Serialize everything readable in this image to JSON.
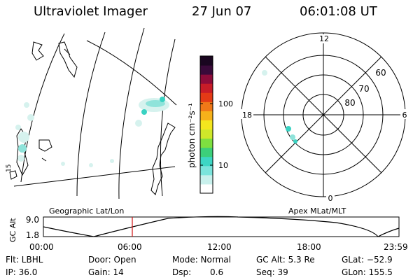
{
  "header": {
    "instrument": "Ultraviolet Imager",
    "date": "27 Jun 07",
    "time": "06:01:08 UT"
  },
  "colorbar": {
    "unit_label": "photon cm⁻²s⁻¹",
    "ticks": [
      "100",
      "10"
    ],
    "colors": [
      "#ffffff",
      "#c8f0ec",
      "#7be4dc",
      "#3dd6c4",
      "#3ccf7a",
      "#7ee040",
      "#cfe82a",
      "#f4e61e",
      "#f6b21a",
      "#f07818",
      "#e43a16",
      "#c81c28",
      "#8e0c3a",
      "#3a0a3a",
      "#1a0620"
    ]
  },
  "geo_map": {
    "label": "Geographic Lat/Lon",
    "edge_label": "15"
  },
  "polar_plot": {
    "label": "Apex MLat/MLT",
    "mlt_labels": {
      "top": "12",
      "left": "18",
      "right": "6",
      "bottom": "0"
    },
    "lat_labels": [
      "60",
      "70",
      "80"
    ]
  },
  "orbit_plot": {
    "y_axis_label": "GC Alt",
    "y_ticks": [
      "9.0",
      "1.8"
    ],
    "x_ticks": [
      "00:00",
      "06:00",
      "12:00",
      "18:00",
      "23:59"
    ],
    "current_time_fraction": 0.25
  },
  "info": {
    "filter": "Flt: LBHL",
    "door": "Door: Open",
    "mode": "Mode: Normal",
    "gc_alt": "GC Alt: 5.3 Re",
    "glat": "GLat: −52.9",
    "ip": "IP: 36.0",
    "gain": "Gain: 14",
    "dsp_label": "Dsp:",
    "dsp_value": "0.6",
    "seq": "Seq: 39",
    "glon": "GLon: 155.5"
  },
  "colors": {
    "auroral_dim": "#d6f2ee",
    "auroral_mid": "#8fe3da",
    "auroral_bright": "#39d2c2",
    "time_marker": "#d01010"
  }
}
